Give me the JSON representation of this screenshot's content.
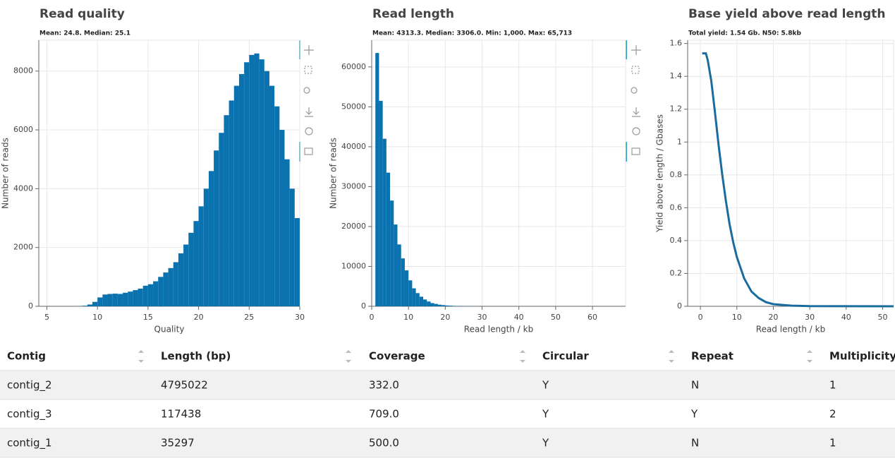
{
  "chart_data": [
    {
      "type": "histogram",
      "title": "Read quality",
      "subtitle": "Mean: 24.8. Median: 25.1",
      "xlabel": "Quality",
      "ylabel": "Number of reads",
      "color": "#0b72b0",
      "grid": true,
      "bins": [
        8,
        8.5,
        9,
        9.5,
        10,
        10.5,
        11,
        11.5,
        12,
        12.5,
        13,
        13.5,
        14,
        14.5,
        15,
        15.5,
        16,
        16.5,
        17,
        17.5,
        18,
        18.5,
        19,
        19.5,
        20,
        20.5,
        21,
        21.5,
        22,
        22.5,
        23,
        23.5,
        24,
        24.5,
        25,
        25.5,
        26,
        26.5,
        27,
        27.5,
        28,
        28.5,
        29,
        29.5,
        30
      ],
      "values": [
        5,
        20,
        60,
        150,
        300,
        400,
        420,
        430,
        420,
        460,
        500,
        550,
        600,
        700,
        750,
        850,
        1000,
        1150,
        1300,
        1500,
        1800,
        2100,
        2500,
        2900,
        3400,
        4000,
        4600,
        5300,
        5900,
        6500,
        7000,
        7500,
        7900,
        8300,
        8550,
        8600,
        8400,
        8000,
        7500,
        6800,
        6000,
        5000,
        4000,
        3000
      ],
      "xlim": [
        4.2,
        30
      ],
      "xticks": [
        5,
        10,
        15,
        20,
        25,
        30
      ],
      "ylim": [
        0,
        9050
      ],
      "yticks": [
        0,
        2000,
        4000,
        6000,
        8000
      ]
    },
    {
      "type": "histogram",
      "title": "Read length",
      "subtitle": "Mean: 4313.3. Median: 3306.0. Min: 1,000. Max: 65,713",
      "xlabel": "Read length / kb",
      "ylabel": "Number of reads",
      "color": "#0b72b0",
      "grid": true,
      "bins": [
        1,
        2,
        3,
        4,
        5,
        6,
        7,
        8,
        9,
        10,
        11,
        12,
        13,
        14,
        15,
        16,
        17,
        18,
        19,
        20,
        21,
        22,
        23,
        24,
        25,
        26,
        27,
        28,
        29,
        30
      ],
      "values": [
        63500,
        51500,
        42000,
        33500,
        26500,
        20500,
        15500,
        12000,
        9000,
        6500,
        4500,
        3300,
        2400,
        1700,
        1200,
        800,
        600,
        400,
        300,
        200,
        150,
        100,
        80,
        60,
        40,
        30,
        20,
        10,
        5
      ],
      "xlim": [
        0,
        69
      ],
      "xticks": [
        0,
        10,
        20,
        30,
        40,
        50,
        60
      ],
      "ylim": [
        0,
        66700
      ],
      "yticks": [
        0,
        10000,
        20000,
        30000,
        40000,
        50000,
        60000
      ]
    },
    {
      "type": "line",
      "title": "Base yield above read length",
      "subtitle": "Total yield: 1.54 Gb.  N50: 5.8kb",
      "xlabel": "Read length / kb",
      "ylabel": "Yield above length / Gbases",
      "color": "#1a6c9e",
      "grid": true,
      "x": [
        0.5,
        1,
        1.5,
        2,
        3,
        4,
        5,
        6,
        7,
        8,
        9,
        10,
        12,
        14,
        16,
        18,
        20,
        25,
        30,
        40,
        53
      ],
      "values": [
        1.54,
        1.54,
        1.54,
        1.5,
        1.37,
        1.18,
        0.98,
        0.8,
        0.64,
        0.5,
        0.39,
        0.3,
        0.17,
        0.09,
        0.05,
        0.025,
        0.013,
        0.004,
        0.001,
        0.0003,
        0
      ],
      "xlim": [
        -3.5,
        53
      ],
      "xticks": [
        0,
        10,
        20,
        30,
        40,
        50
      ],
      "ylim": [
        0,
        1.62
      ],
      "yticks": [
        0,
        0.2,
        0.4,
        0.6,
        0.8,
        1,
        1.2,
        1.4,
        1.6
      ]
    }
  ],
  "table": {
    "columns": [
      "Contig",
      "Length (bp)",
      "Coverage",
      "Circular",
      "Repeat",
      "Multiplicity"
    ],
    "rows": [
      [
        "contig_2",
        "4795022",
        "332.0",
        "Y",
        "N",
        "1"
      ],
      [
        "contig_3",
        "117438",
        "709.0",
        "Y",
        "Y",
        "2"
      ],
      [
        "contig_1",
        "35297",
        "500.0",
        "Y",
        "N",
        "1"
      ]
    ]
  }
}
